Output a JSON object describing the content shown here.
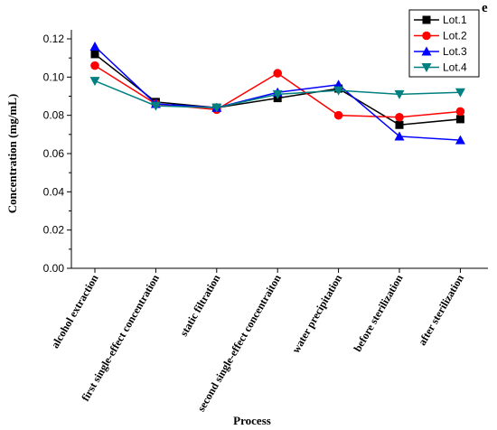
{
  "chart_data": {
    "type": "line",
    "panel_label": "e",
    "xlabel": "Process",
    "ylabel": "Concentration (mg/mL)",
    "categories": [
      "alcohol extraction",
      "first single-effect concentration",
      "static filtration",
      "second single-effect concentraiton",
      "water precipitation",
      "before sterilization",
      "after sterilization"
    ],
    "ylim": [
      0.0,
      0.12
    ],
    "yticks": [
      "0.00",
      "0.02",
      "0.04",
      "0.06",
      "0.08",
      "0.10",
      "0.12"
    ],
    "grid": false,
    "legend_position": "top-right",
    "series": [
      {
        "name": "Lot.1",
        "color": "#000000",
        "marker": "square",
        "values": [
          0.112,
          0.087,
          0.084,
          0.089,
          0.094,
          0.075,
          0.078
        ]
      },
      {
        "name": "Lot.2",
        "color": "#ff0000",
        "marker": "circle",
        "values": [
          0.106,
          0.086,
          0.083,
          0.102,
          0.08,
          0.079,
          0.082
        ]
      },
      {
        "name": "Lot.3",
        "color": "#0000ff",
        "marker": "triangle-up",
        "values": [
          0.116,
          0.086,
          0.084,
          0.092,
          0.096,
          0.069,
          0.067
        ]
      },
      {
        "name": "Lot.4",
        "color": "#008080",
        "marker": "triangle-down",
        "values": [
          0.098,
          0.085,
          0.084,
          0.091,
          0.093,
          0.091,
          0.092
        ]
      }
    ]
  }
}
